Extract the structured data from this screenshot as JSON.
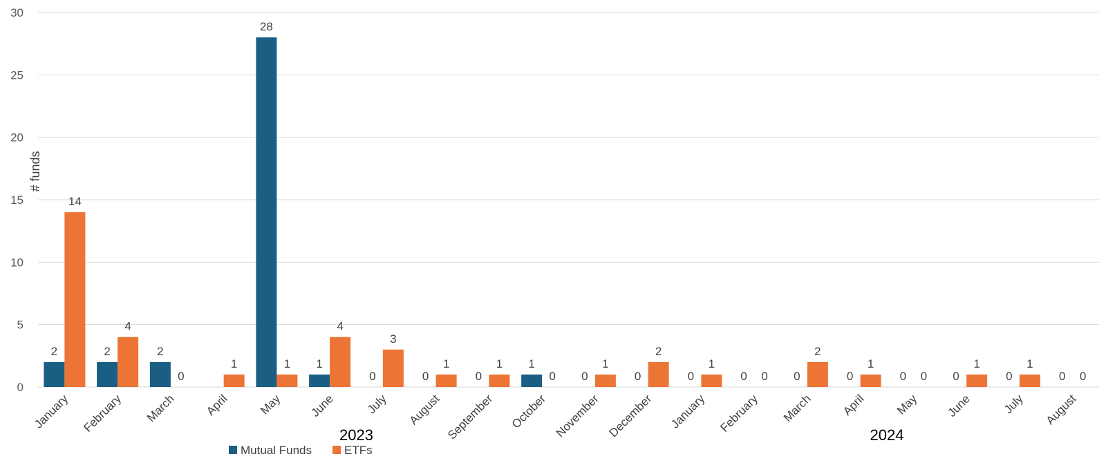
{
  "chart_data": {
    "type": "bar",
    "ylabel": "# funds",
    "ylim": [
      0,
      30
    ],
    "yticks": [
      0,
      5,
      10,
      15,
      20,
      25,
      30
    ],
    "grid": true,
    "legend_position": "bottom",
    "categories": [
      "January",
      "February",
      "March",
      "April",
      "May",
      "June",
      "July",
      "August",
      "September",
      "October",
      "November",
      "December",
      "January",
      "February",
      "March",
      "April",
      "May",
      "June",
      "July",
      "August"
    ],
    "year_groups": [
      {
        "label": "2023",
        "start": 0,
        "end": 11
      },
      {
        "label": "2024",
        "start": 12,
        "end": 19
      }
    ],
    "series": [
      {
        "name": "Mutual Funds",
        "color": "#1a5e84",
        "values": [
          2,
          2,
          2,
          0,
          28,
          1,
          0,
          0,
          0,
          1,
          0,
          0,
          0,
          0,
          0,
          0,
          0,
          0,
          0,
          0
        ]
      },
      {
        "name": "ETFs",
        "color": "#ec7535",
        "values": [
          14,
          4,
          0,
          1,
          1,
          4,
          3,
          1,
          1,
          0,
          1,
          2,
          1,
          0,
          2,
          1,
          0,
          1,
          1,
          0
        ]
      }
    ],
    "data_labels": [
      [
        2,
        2,
        2,
        null,
        28,
        1,
        0,
        0,
        0,
        1,
        0,
        0,
        0,
        0,
        0,
        0,
        0,
        0,
        0,
        0
      ],
      [
        14,
        4,
        0,
        1,
        1,
        4,
        3,
        1,
        1,
        0,
        1,
        2,
        1,
        0,
        2,
        1,
        0,
        1,
        1,
        0
      ]
    ],
    "gridline_color": "#d9d9d9"
  }
}
